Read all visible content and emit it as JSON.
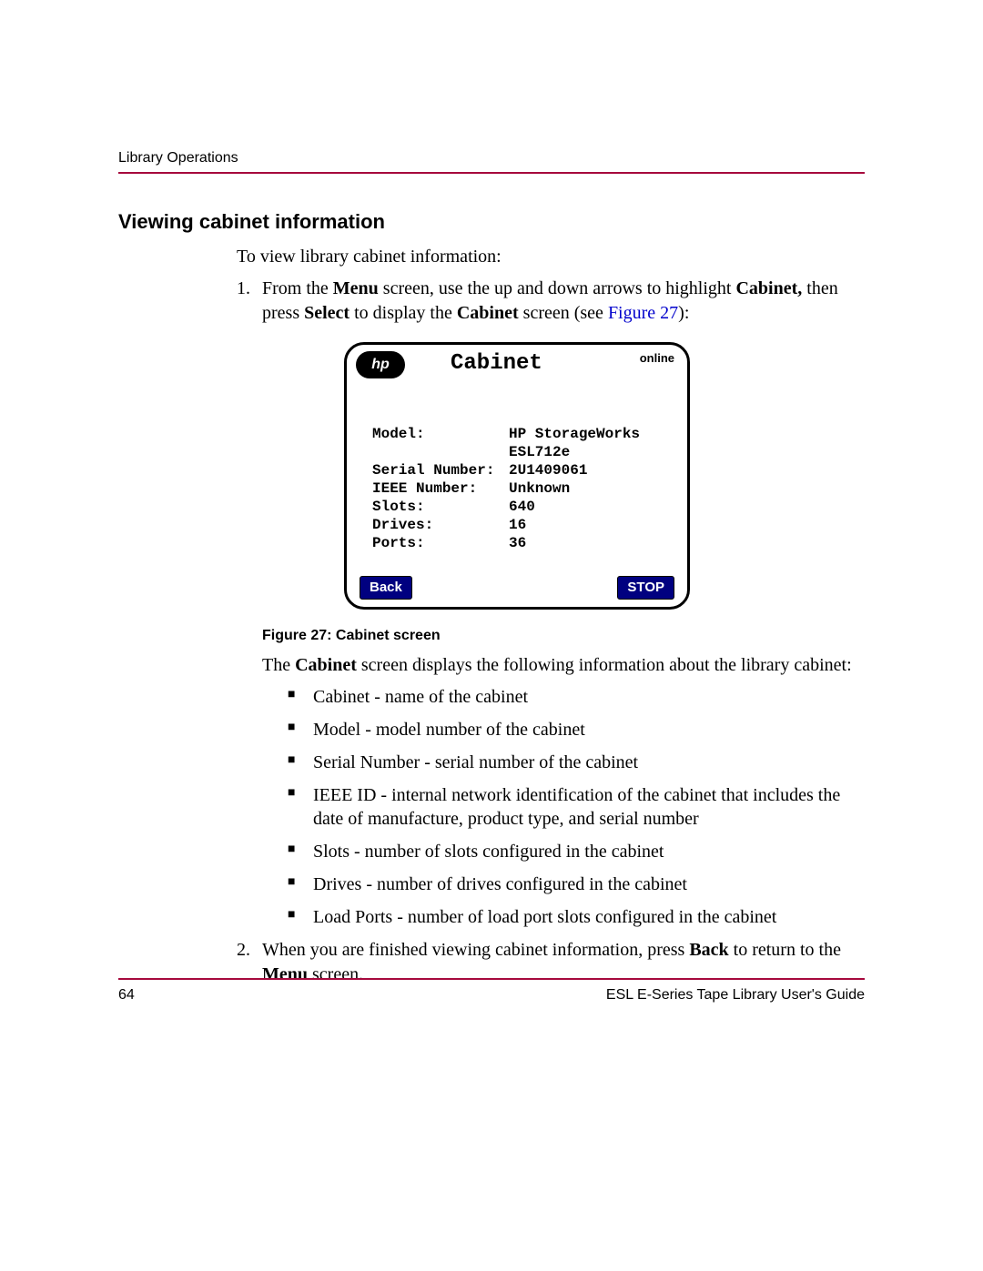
{
  "colors": {
    "rule": "#a6093d",
    "link": "#0000cc",
    "button_bg": "#000080",
    "button_fg": "#ffffff",
    "text": "#000000",
    "page_bg": "#ffffff"
  },
  "header": {
    "running_head": "Library Operations"
  },
  "section": {
    "title": "Viewing cabinet information",
    "intro": "To view library cabinet information:"
  },
  "step1": {
    "num": "1.",
    "pre": "From the ",
    "menu": "Menu",
    "mid1": " screen, use the up and down arrows to highlight ",
    "cabinet1": "Cabinet,",
    "mid2": " then press ",
    "select": "Select",
    "mid3": " to display the ",
    "cabinet2": "Cabinet",
    "mid4": " screen (see ",
    "figref": "Figure 27",
    "end": "):"
  },
  "device": {
    "logo_text": "hp",
    "title": "Cabinet",
    "status": "online",
    "rows": [
      {
        "label": "Model:",
        "value": "HP StorageWorks"
      },
      {
        "label": "",
        "value": "ESL712e"
      },
      {
        "label": "Serial Number:",
        "value": "2U1409061"
      },
      {
        "label": "IEEE Number:",
        "value": "Unknown"
      },
      {
        "label": "Slots:",
        "value": "640"
      },
      {
        "label": "Drives:",
        "value": "16"
      },
      {
        "label": "Ports:",
        "value": "36"
      }
    ],
    "back": "Back",
    "stop": "STOP"
  },
  "caption": "Figure 27:  Cabinet screen",
  "after_fig": {
    "pre": "The ",
    "cabinet": "Cabinet",
    "post": " screen displays the following information about the library cabinet:"
  },
  "bullets": [
    "Cabinet - name of the cabinet",
    "Model - model number of the cabinet",
    "Serial Number - serial number of the cabinet",
    "IEEE ID - internal network identification of the cabinet that includes the date of manufacture, product type, and serial number",
    "Slots - number of slots configured in the cabinet",
    "Drives - number of drives configured in the cabinet",
    "Load Ports - number of load port slots configured in the cabinet"
  ],
  "step2": {
    "num": "2.",
    "pre": "When you are finished viewing cabinet information, press ",
    "back": "Back",
    "mid": " to return to the ",
    "menu": "Menu",
    "end": " screen."
  },
  "footer": {
    "page_no": "64",
    "doc_title": "ESL E-Series Tape Library User's Guide"
  }
}
